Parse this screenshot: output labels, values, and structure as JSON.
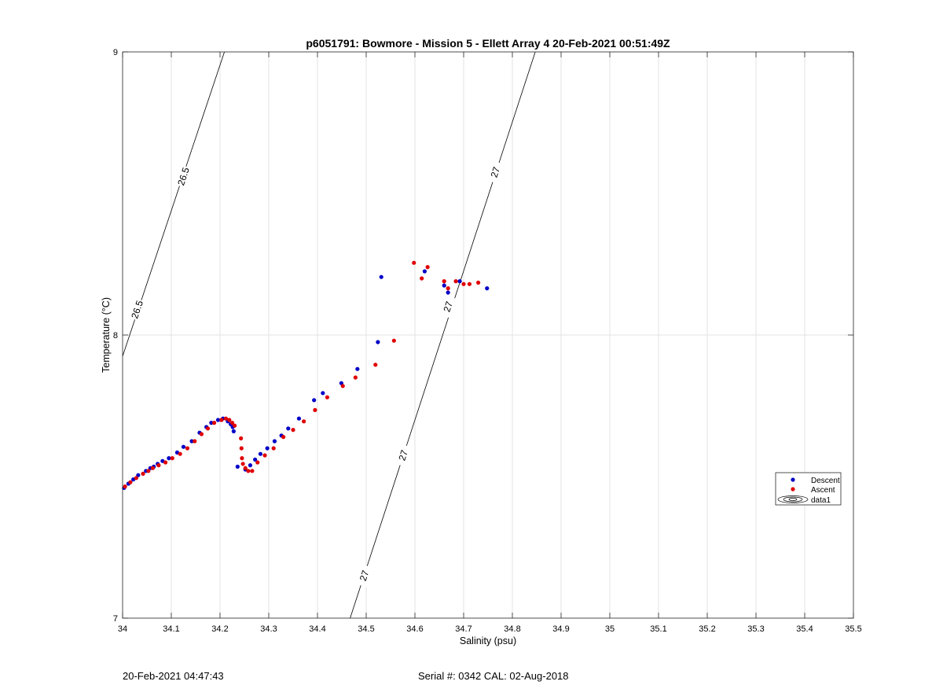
{
  "chart_data": {
    "type": "scatter",
    "title": "p6051791: Bowmore - Mission 5 - Ellett Array 4 20-Feb-2021 00:51:49Z",
    "xlabel": "Salinity (psu)",
    "ylabel": "Temperature (°C)",
    "xlim": [
      34,
      35.5
    ],
    "ylim": [
      7,
      9
    ],
    "xticks": [
      "34",
      "34.1",
      "34.2",
      "34.3",
      "34.4",
      "34.5",
      "34.6",
      "34.7",
      "34.8",
      "34.9",
      "35",
      "35.1",
      "35.2",
      "35.3",
      "35.4",
      "35.5"
    ],
    "yticks": [
      "7",
      "8",
      "9"
    ],
    "grid": true,
    "legend_position": "right-middle",
    "series": [
      {
        "name": "Descent",
        "color": "#0000c8",
        "points": [
          [
            34.003,
            7.46
          ],
          [
            34.012,
            7.475
          ],
          [
            34.022,
            7.49
          ],
          [
            34.032,
            7.505
          ],
          [
            34.048,
            7.52
          ],
          [
            34.057,
            7.53
          ],
          [
            34.064,
            7.535
          ],
          [
            34.072,
            7.545
          ],
          [
            34.082,
            7.555
          ],
          [
            34.095,
            7.565
          ],
          [
            34.112,
            7.585
          ],
          [
            34.125,
            7.605
          ],
          [
            34.142,
            7.625
          ],
          [
            34.158,
            7.655
          ],
          [
            34.172,
            7.675
          ],
          [
            34.182,
            7.69
          ],
          [
            34.196,
            7.7
          ],
          [
            34.206,
            7.705
          ],
          [
            34.216,
            7.695
          ],
          [
            34.222,
            7.685
          ],
          [
            34.226,
            7.675
          ],
          [
            34.228,
            7.66
          ],
          [
            34.236,
            7.535
          ],
          [
            34.252,
            7.525
          ],
          [
            34.262,
            7.54
          ],
          [
            34.272,
            7.56
          ],
          [
            34.283,
            7.58
          ],
          [
            34.297,
            7.6
          ],
          [
            34.312,
            7.625
          ],
          [
            34.326,
            7.645
          ],
          [
            34.34,
            7.67
          ],
          [
            34.362,
            7.705
          ],
          [
            34.393,
            7.77
          ],
          [
            34.411,
            7.795
          ],
          [
            34.449,
            7.83
          ],
          [
            34.482,
            7.88
          ],
          [
            34.524,
            7.975
          ],
          [
            34.531,
            8.205
          ],
          [
            34.62,
            8.225
          ],
          [
            34.66,
            8.175
          ],
          [
            34.668,
            8.15
          ],
          [
            34.692,
            8.19
          ],
          [
            34.748,
            8.165
          ]
        ]
      },
      {
        "name": "Ascent",
        "color": "#e00000",
        "points": [
          [
            34.005,
            7.465
          ],
          [
            34.016,
            7.48
          ],
          [
            34.028,
            7.495
          ],
          [
            34.042,
            7.51
          ],
          [
            34.053,
            7.52
          ],
          [
            34.062,
            7.53
          ],
          [
            34.074,
            7.54
          ],
          [
            34.088,
            7.55
          ],
          [
            34.102,
            7.565
          ],
          [
            34.118,
            7.58
          ],
          [
            34.133,
            7.6
          ],
          [
            34.148,
            7.625
          ],
          [
            34.162,
            7.65
          ],
          [
            34.175,
            7.67
          ],
          [
            34.188,
            7.69
          ],
          [
            34.203,
            7.7
          ],
          [
            34.212,
            7.705
          ],
          [
            34.219,
            7.7
          ],
          [
            34.225,
            7.69
          ],
          [
            34.23,
            7.68
          ],
          [
            34.243,
            7.635
          ],
          [
            34.244,
            7.6
          ],
          [
            34.245,
            7.565
          ],
          [
            34.247,
            7.545
          ],
          [
            34.252,
            7.53
          ],
          [
            34.258,
            7.52
          ],
          [
            34.266,
            7.52
          ],
          [
            34.277,
            7.55
          ],
          [
            34.292,
            7.575
          ],
          [
            34.31,
            7.6
          ],
          [
            34.33,
            7.64
          ],
          [
            34.35,
            7.665
          ],
          [
            34.372,
            7.695
          ],
          [
            34.395,
            7.735
          ],
          [
            34.42,
            7.78
          ],
          [
            34.452,
            7.82
          ],
          [
            34.478,
            7.85
          ],
          [
            34.519,
            7.895
          ],
          [
            34.557,
            7.98
          ],
          [
            34.598,
            8.255
          ],
          [
            34.614,
            8.2
          ],
          [
            34.626,
            8.24
          ],
          [
            34.66,
            8.19
          ],
          [
            34.668,
            8.165
          ],
          [
            34.684,
            8.19
          ],
          [
            34.7,
            8.18
          ],
          [
            34.712,
            8.18
          ],
          [
            34.73,
            8.185
          ]
        ]
      }
    ],
    "isopycnals": [
      {
        "label": "26.5",
        "line": [
          [
            34,
            7.925
          ],
          [
            34.209,
            9
          ]
        ],
        "labels_at": [
          [
            34.03,
            8.09
          ],
          [
            34.125,
            8.56
          ]
        ]
      },
      {
        "label": "27",
        "line": [
          [
            34.467,
            7
          ],
          [
            34.847,
            9
          ]
        ],
        "labels_at": [
          [
            34.496,
            7.15
          ],
          [
            34.576,
            7.575
          ],
          [
            34.668,
            8.1
          ],
          [
            34.765,
            8.575
          ]
        ]
      }
    ],
    "legend": {
      "entries": [
        "Descent",
        "Ascent",
        "data1"
      ]
    }
  },
  "footer": {
    "left": "20-Feb-2021 04:47:43",
    "center": "Serial #: 0342  CAL: 02-Aug-2018"
  }
}
